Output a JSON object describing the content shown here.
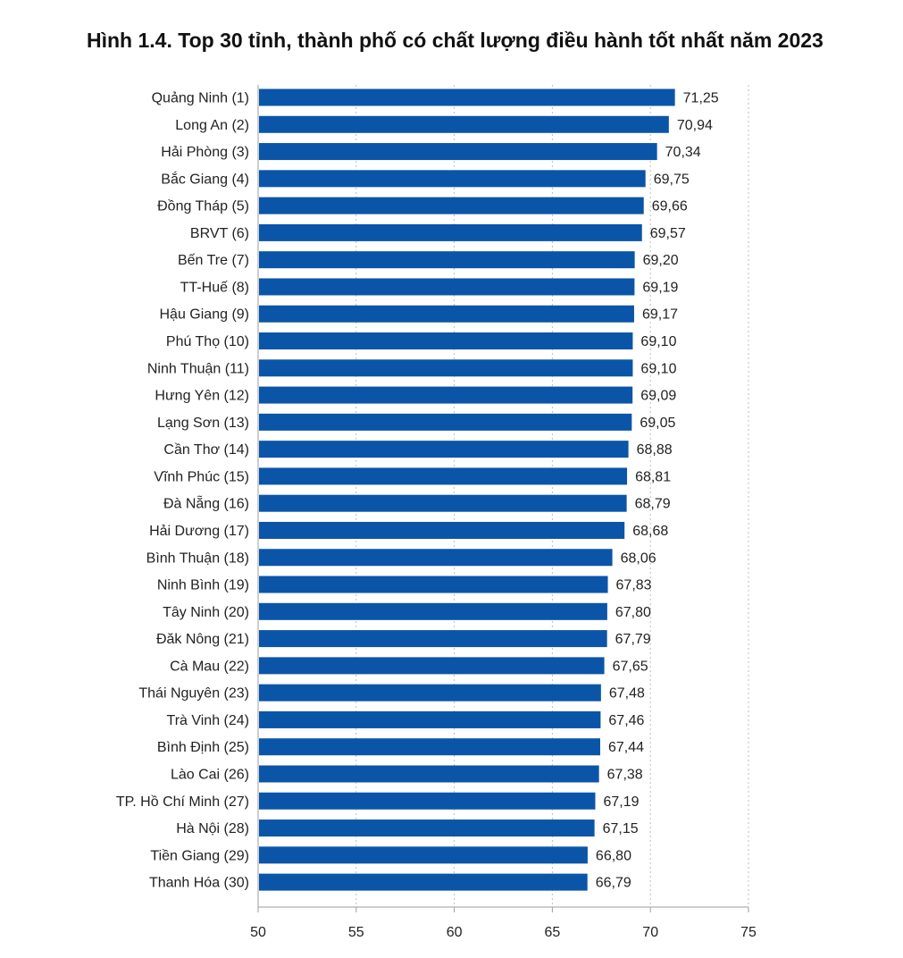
{
  "chart_data": {
    "type": "bar",
    "orientation": "horizontal",
    "title": "Hình 1.4. Top 30 tỉnh, thành phố có chất lượng điều hành tốt nhất năm 2023",
    "xlabel": "",
    "ylabel": "",
    "xlim": [
      50,
      75
    ],
    "ticks": [
      "50",
      "55",
      "60",
      "65",
      "70",
      "75"
    ],
    "grid": "vertical dotted",
    "bar_color": "#0b55a8",
    "categories": [
      "Quảng Ninh (1)",
      "Long An (2)",
      "Hải Phòng (3)",
      "Bắc Giang (4)",
      "Đồng Tháp (5)",
      "BRVT (6)",
      "Bến Tre (7)",
      "TT-Huế (8)",
      "Hậu Giang (9)",
      "Phú Thọ (10)",
      "Ninh Thuận (11)",
      "Hưng Yên (12)",
      "Lạng Sơn (13)",
      "Cần Thơ (14)",
      "Vĩnh Phúc (15)",
      "Đà Nẵng (16)",
      "Hải Dương (17)",
      "Bình Thuận (18)",
      "Ninh Bình (19)",
      "Tây Ninh (20)",
      "Đăk Nông (21)",
      "Cà Mau (22)",
      "Thái Nguyên (23)",
      "Trà Vinh (24)",
      "Bình Định (25)",
      "Lào Cai (26)",
      "TP. Hồ Chí Minh (27)",
      "Hà Nội (28)",
      "Tiền Giang (29)",
      "Thanh Hóa (30)"
    ],
    "values": [
      71.25,
      70.94,
      70.34,
      69.75,
      69.66,
      69.57,
      69.2,
      69.19,
      69.17,
      69.1,
      69.1,
      69.09,
      69.05,
      68.88,
      68.81,
      68.79,
      68.68,
      68.06,
      67.83,
      67.8,
      67.79,
      67.65,
      67.48,
      67.46,
      67.44,
      67.38,
      67.19,
      67.15,
      66.8,
      66.79
    ],
    "value_labels": [
      "71,25",
      "70,94",
      "70,34",
      "69,75",
      "69,66",
      "69,57",
      "69,20",
      "69,19",
      "69,17",
      "69,10",
      "69,10",
      "69,09",
      "69,05",
      "68,88",
      "68,81",
      "68,79",
      "68,68",
      "68,06",
      "67,83",
      "67,80",
      "67,79",
      "67,65",
      "67,48",
      "67,46",
      "67,44",
      "67,38",
      "67,19",
      "67,15",
      "66,80",
      "66,79"
    ]
  }
}
